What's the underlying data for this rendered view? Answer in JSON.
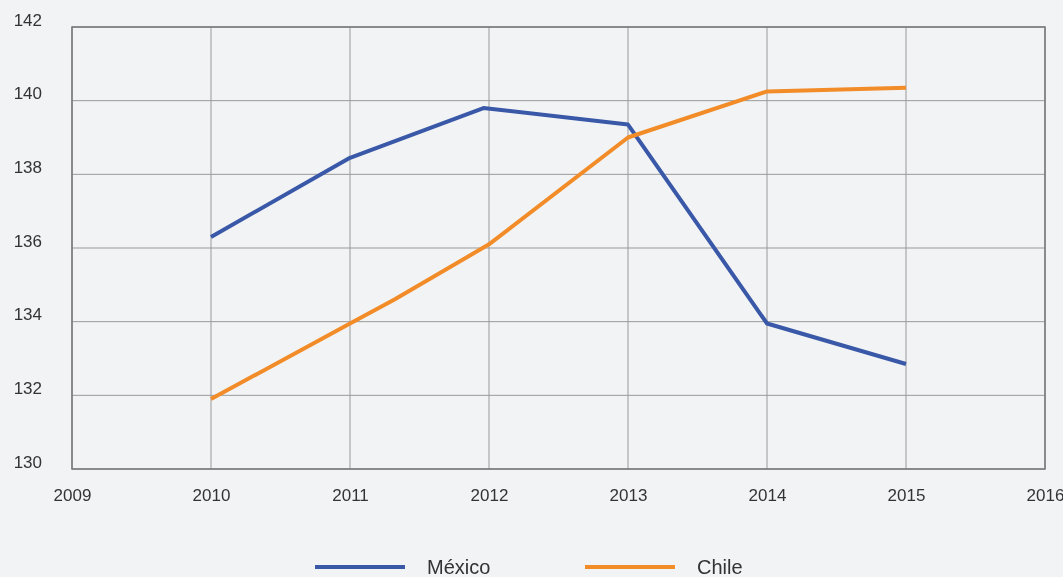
{
  "chart_data": {
    "type": "line",
    "xlim": [
      2009,
      2016
    ],
    "xticks": [
      2009,
      2010,
      2011,
      2012,
      2013,
      2014,
      2015,
      2016
    ],
    "ylim": [
      130,
      142
    ],
    "yticks": [
      130,
      132,
      134,
      136,
      138,
      140,
      142
    ],
    "grid": true,
    "legend": "bottom",
    "series": [
      {
        "name": "México",
        "color": "#3a58a8",
        "x": [
          2010,
          2011,
          2011.96,
          2013,
          2014,
          2015
        ],
        "values": [
          136.3,
          138.45,
          139.8,
          139.35,
          133.95,
          132.85
        ]
      },
      {
        "name": "Chile",
        "color": "#f28c28",
        "x": [
          2010,
          2011,
          2011.32,
          2012,
          2013,
          2014,
          2015
        ],
        "values": [
          131.9,
          133.95,
          134.6,
          136.1,
          139.0,
          140.25,
          140.35
        ]
      }
    ]
  }
}
